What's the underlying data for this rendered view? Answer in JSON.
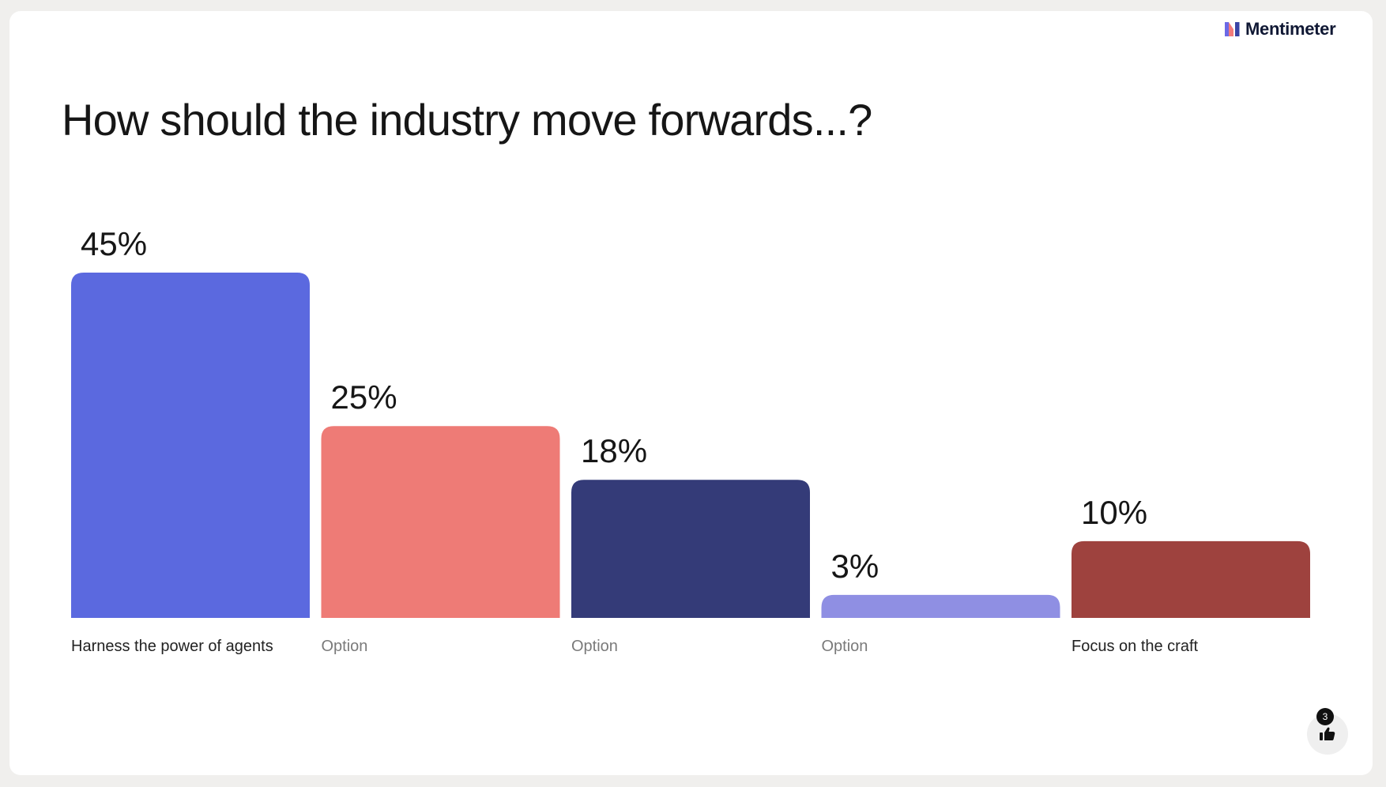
{
  "brand": {
    "name": "Mentimeter",
    "logo_icon": "mentimeter-logo-icon"
  },
  "question": "How should the industry move forwards...?",
  "reactions": {
    "count": "3",
    "icon": "thumbs-up-icon"
  },
  "chart_data": {
    "type": "bar",
    "title": "How should the industry move forwards...?",
    "categories": [
      "Harness the power of agents",
      "Option",
      "Option",
      "Option",
      "Focus on the craft"
    ],
    "values": [
      45,
      25,
      18,
      3,
      10
    ],
    "value_labels": [
      "45%",
      "25%",
      "18%",
      "3%",
      "10%"
    ],
    "unit": "%",
    "colors": [
      "#5b69df",
      "#ee7b76",
      "#343b78",
      "#8f8fe3",
      "#9e423e"
    ],
    "category_label_colors": [
      "#222222",
      "#7a7a7a",
      "#7a7a7a",
      "#7a7a7a",
      "#222222"
    ],
    "ylim": [
      0,
      45
    ],
    "grid": false,
    "legend": "none"
  }
}
